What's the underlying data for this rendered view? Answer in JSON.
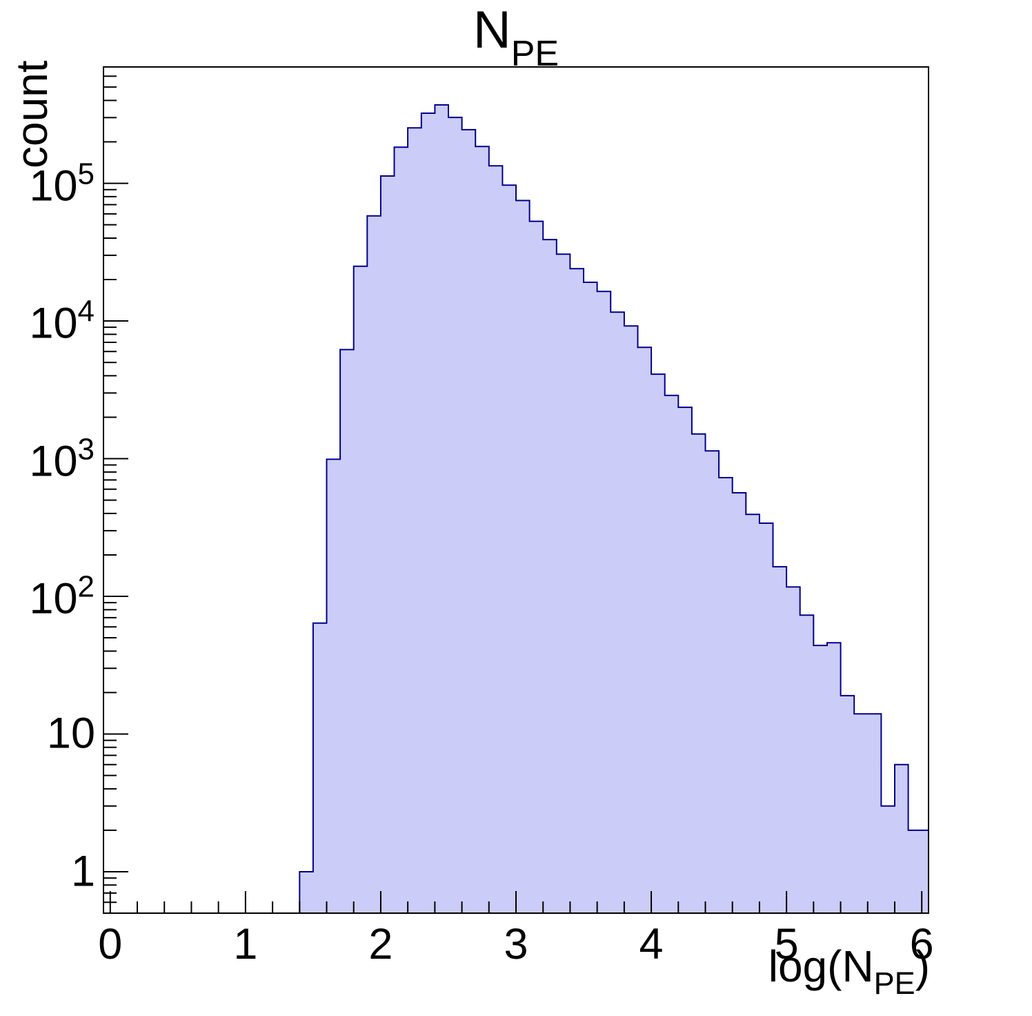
{
  "title": {
    "text": "N",
    "subscript": "PE"
  },
  "y_axis_label": "count",
  "x_axis_label": {
    "prefix": "log(N",
    "subscript": "PE",
    "suffix": ")"
  },
  "colors": {
    "background": "#ffffff",
    "histogram_fill": "#ccccf8",
    "histogram_outline": "#00008c",
    "axis": "#000000"
  },
  "chart_data": {
    "type": "bar",
    "title": "N_PE",
    "xlabel": "log(N_PE)",
    "ylabel": "count",
    "legend": "none",
    "grid": false,
    "x_axis": {
      "range": [
        -0.05,
        6.05
      ],
      "major_ticks": [
        0,
        1,
        2,
        3,
        4,
        5,
        6
      ],
      "major_tick_labels": [
        "0",
        "1",
        "2",
        "3",
        "4",
        "5",
        "6"
      ],
      "minor_tick_step": 0.2
    },
    "y_axis": {
      "scale": "log",
      "range": [
        0.5,
        700000
      ],
      "major_ticks": [
        1,
        10,
        100,
        1000,
        10000,
        100000
      ],
      "tick_labels": [
        {
          "value": 1,
          "base": "1",
          "exp": ""
        },
        {
          "value": 10,
          "base": "10",
          "exp": ""
        },
        {
          "value": 100,
          "base": "10",
          "exp": "2"
        },
        {
          "value": 1000,
          "base": "10",
          "exp": "3"
        },
        {
          "value": 10000,
          "base": "10",
          "exp": "4"
        },
        {
          "value": 100000,
          "base": "10",
          "exp": "5"
        }
      ]
    },
    "bin_width": 0.1,
    "last_bin_end": 6.05,
    "bins": [
      {
        "start": 1.4,
        "count": 1
      },
      {
        "start": 1.5,
        "count": 64
      },
      {
        "start": 1.6,
        "count": 990
      },
      {
        "start": 1.7,
        "count": 6200
      },
      {
        "start": 1.8,
        "count": 25000
      },
      {
        "start": 1.9,
        "count": 58000
      },
      {
        "start": 2.0,
        "count": 113000
      },
      {
        "start": 2.1,
        "count": 183000
      },
      {
        "start": 2.2,
        "count": 253000
      },
      {
        "start": 2.3,
        "count": 323000
      },
      {
        "start": 2.4,
        "count": 371000
      },
      {
        "start": 2.5,
        "count": 301000
      },
      {
        "start": 2.6,
        "count": 245000
      },
      {
        "start": 2.7,
        "count": 185000
      },
      {
        "start": 2.8,
        "count": 134000
      },
      {
        "start": 2.9,
        "count": 97000
      },
      {
        "start": 3.0,
        "count": 75000
      },
      {
        "start": 3.1,
        "count": 53000
      },
      {
        "start": 3.2,
        "count": 39000
      },
      {
        "start": 3.3,
        "count": 30600
      },
      {
        "start": 3.4,
        "count": 24000
      },
      {
        "start": 3.5,
        "count": 19100
      },
      {
        "start": 3.6,
        "count": 16400
      },
      {
        "start": 3.7,
        "count": 11600
      },
      {
        "start": 3.8,
        "count": 9200
      },
      {
        "start": 3.9,
        "count": 6440
      },
      {
        "start": 4.0,
        "count": 4110
      },
      {
        "start": 4.1,
        "count": 2880
      },
      {
        "start": 4.2,
        "count": 2360
      },
      {
        "start": 4.3,
        "count": 1510
      },
      {
        "start": 4.4,
        "count": 1140
      },
      {
        "start": 4.5,
        "count": 728
      },
      {
        "start": 4.6,
        "count": 565
      },
      {
        "start": 4.7,
        "count": 394
      },
      {
        "start": 4.8,
        "count": 340
      },
      {
        "start": 4.9,
        "count": 164
      },
      {
        "start": 5.0,
        "count": 117
      },
      {
        "start": 5.1,
        "count": 73
      },
      {
        "start": 5.2,
        "count": 44
      },
      {
        "start": 5.3,
        "count": 46
      },
      {
        "start": 5.4,
        "count": 19
      },
      {
        "start": 5.5,
        "count": 14
      },
      {
        "start": 5.6,
        "count": 14
      },
      {
        "start": 5.7,
        "count": 3
      },
      {
        "start": 5.8,
        "count": 6
      },
      {
        "start": 5.9,
        "count": 2
      }
    ]
  }
}
